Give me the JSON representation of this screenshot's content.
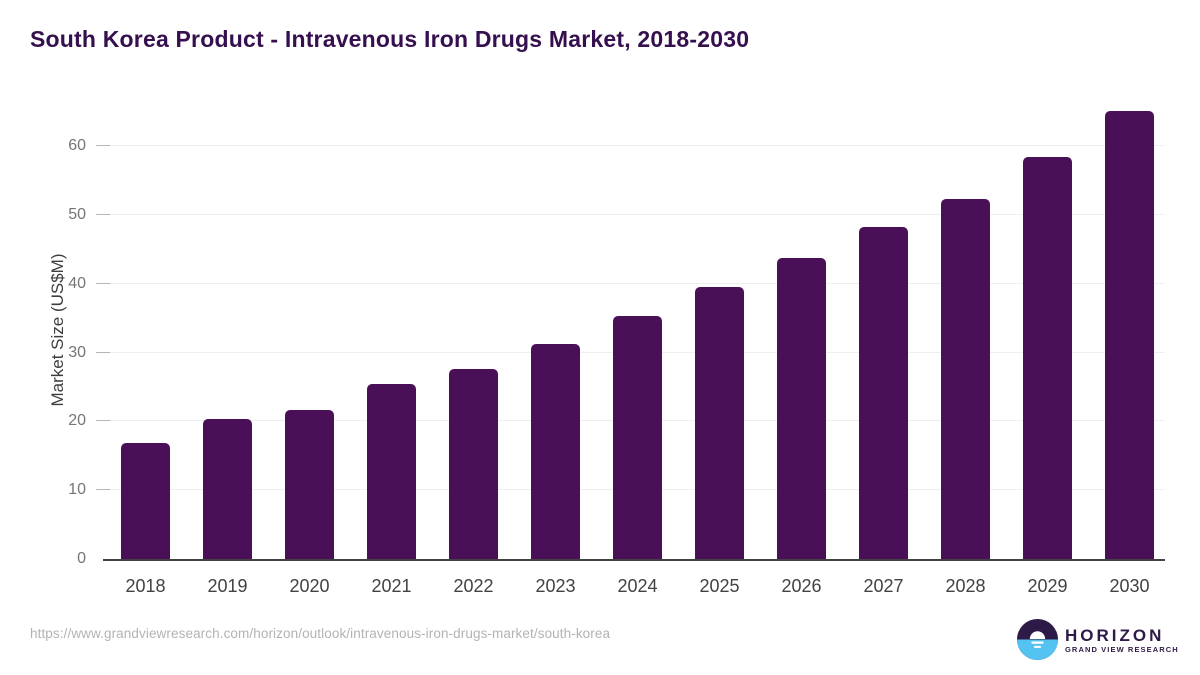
{
  "title": "South Korea Product - Intravenous Iron Drugs Market, 2018-2030",
  "source_url": "https://www.grandviewresearch.com/horizon/outlook/intravenous-iron-drugs-market/south-korea",
  "logo": {
    "name": "HORIZON",
    "subtitle": "GRAND VIEW RESEARCH"
  },
  "colors": {
    "bar": "#491058",
    "title": "#36104e",
    "axis_line": "#424242",
    "gridline": "#efefef",
    "y_tick_label": "#757575",
    "x_tick_label": "#424242",
    "url_text": "#b3b3b3",
    "logo_purple": "#2e1a47",
    "logo_blue": "#55c3f2"
  },
  "chart_data": {
    "type": "bar",
    "title": "South Korea Product - Intravenous Iron Drugs Market, 2018-2030",
    "categories": [
      "2018",
      "2019",
      "2020",
      "2021",
      "2022",
      "2023",
      "2024",
      "2025",
      "2026",
      "2027",
      "2028",
      "2029",
      "2030"
    ],
    "values": [
      16.9,
      20.4,
      21.7,
      25.5,
      27.7,
      31.2,
      35.4,
      39.5,
      43.8,
      48.3,
      52.4,
      58.5,
      65.2
    ],
    "xlabel": "",
    "ylabel": "Market Size (US$M)",
    "ylim": [
      0,
      67
    ],
    "yticks": [
      0,
      10,
      20,
      30,
      40,
      50,
      60
    ],
    "grid": true,
    "legend": false
  }
}
